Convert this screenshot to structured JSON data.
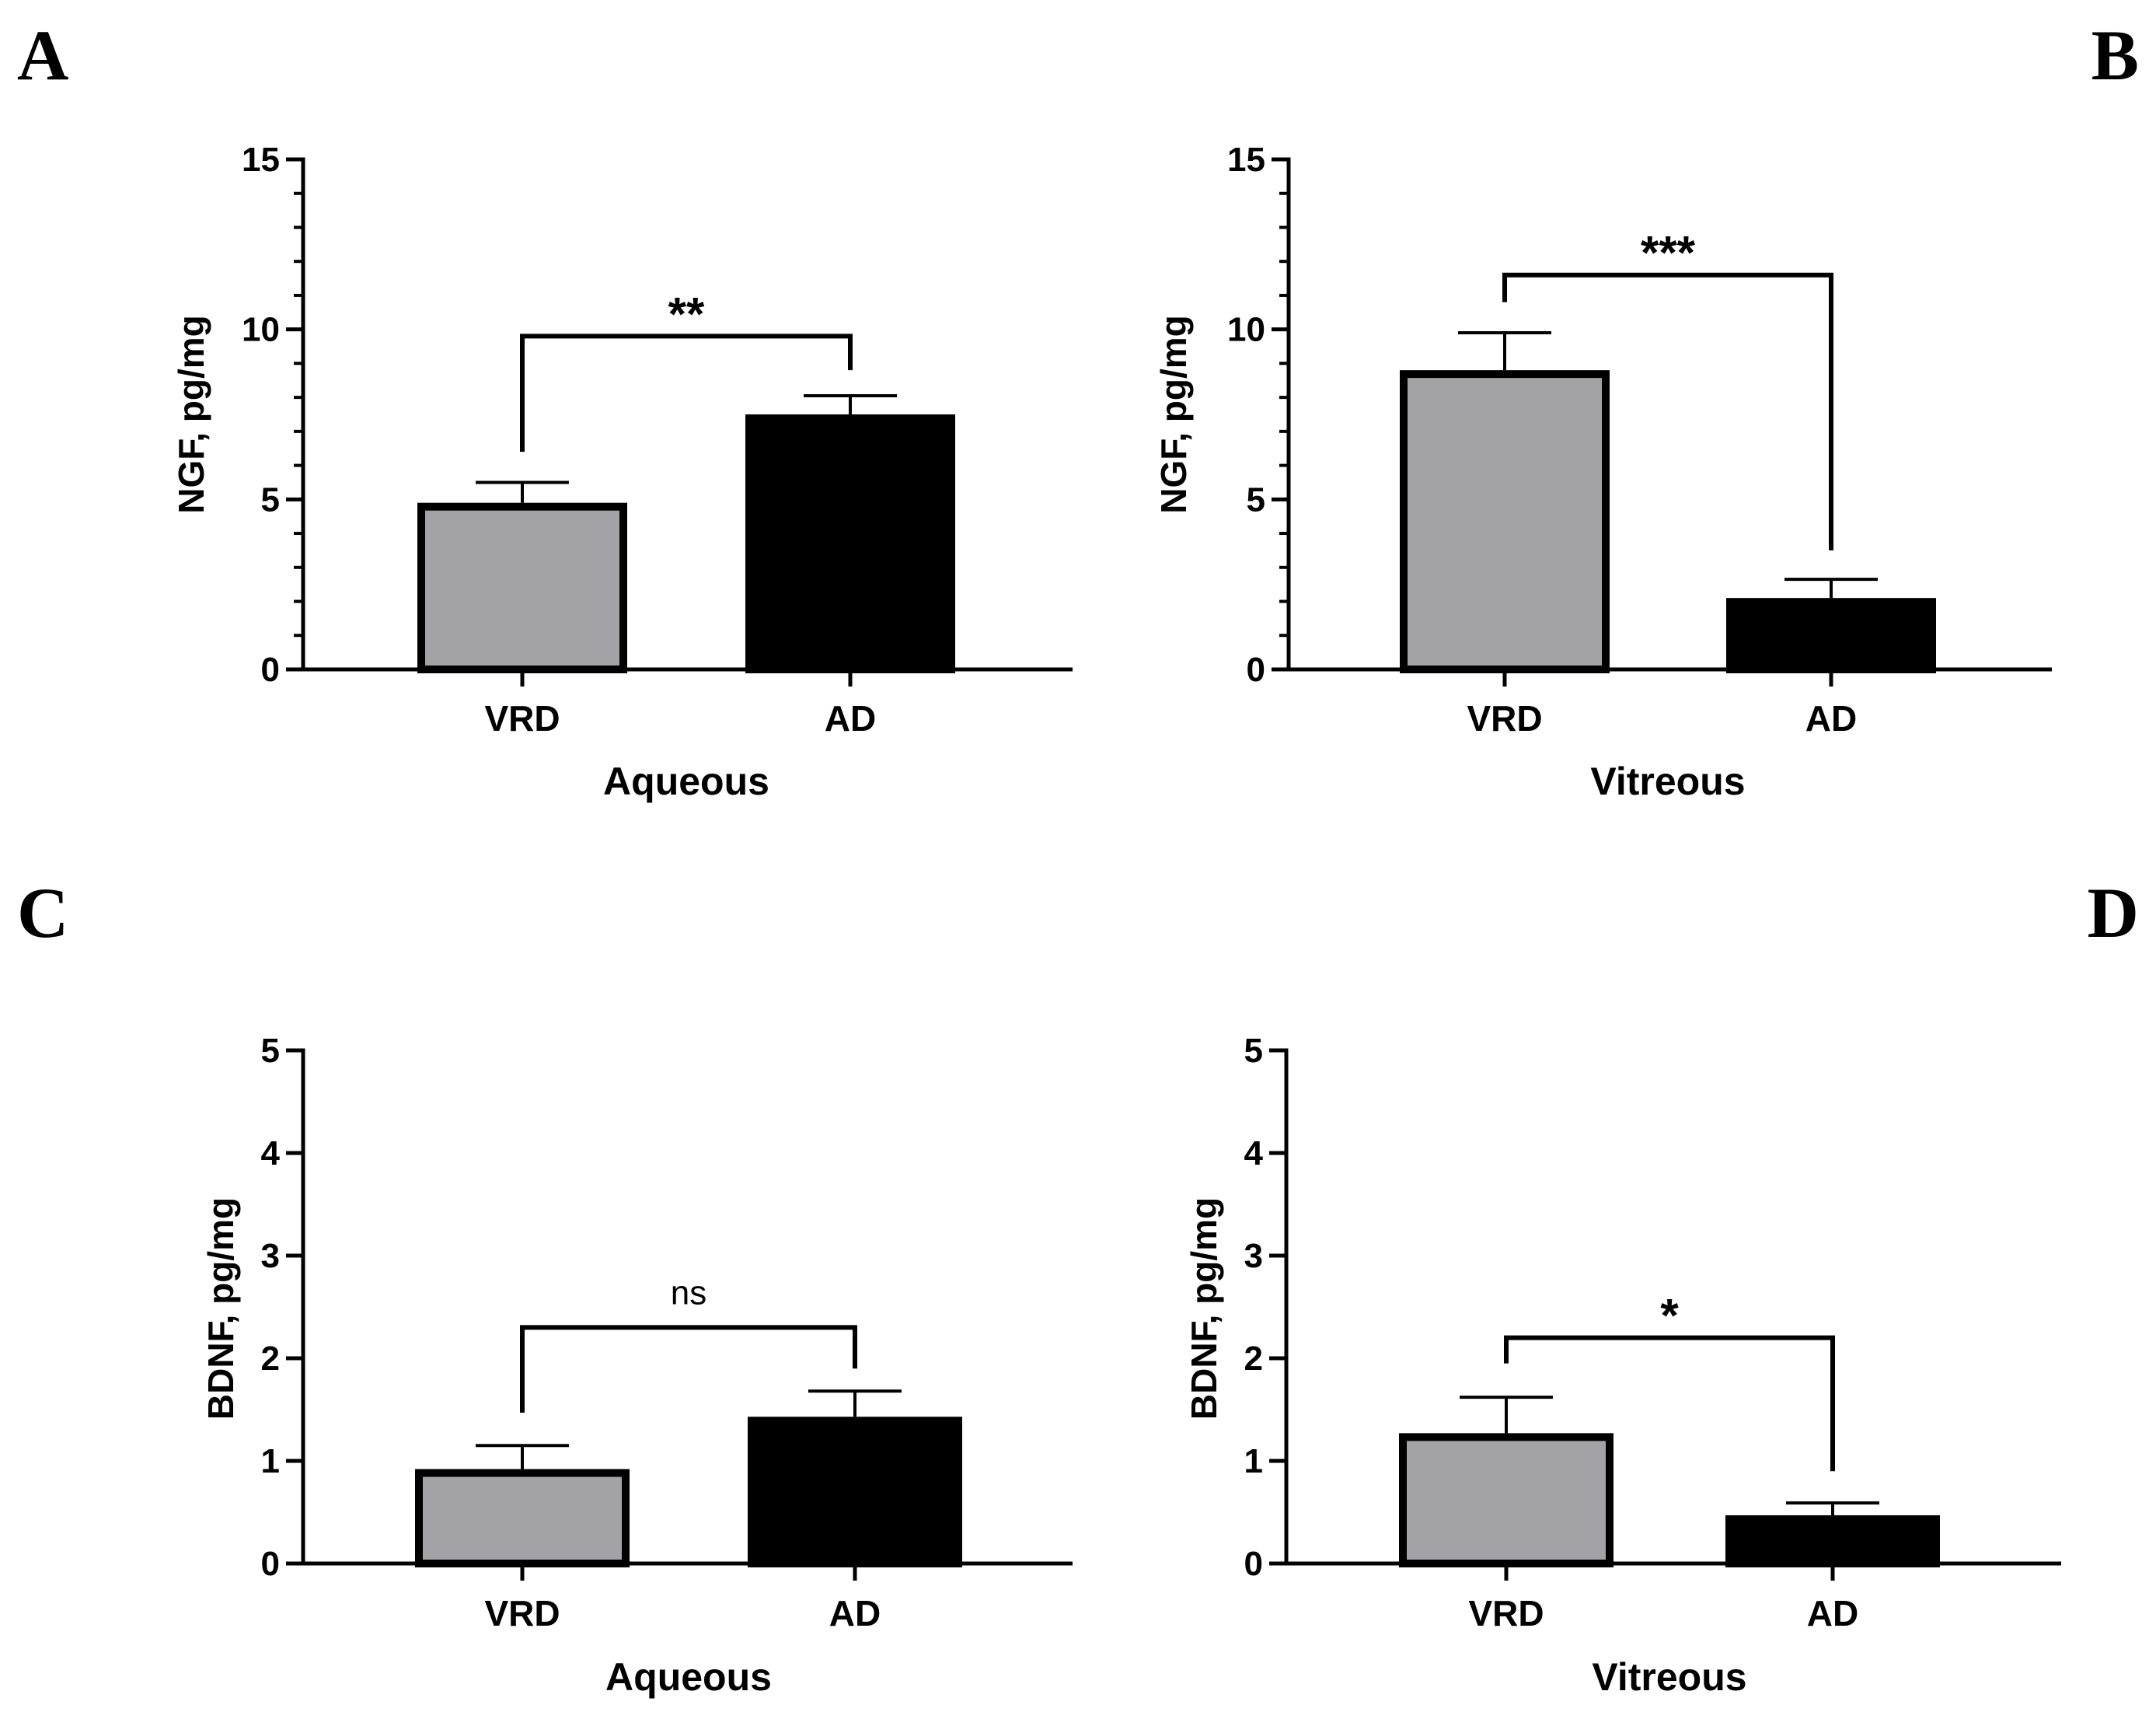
{
  "colors": {
    "vrd_fill": "#a3a2a7",
    "ad_fill": "#000000",
    "axis": "#000000",
    "background": "#ffffff"
  },
  "chart_data": [
    {
      "panel": "A",
      "type": "bar",
      "categories": [
        "VRD",
        "AD"
      ],
      "values": [
        4.9,
        7.5
      ],
      "errors": [
        0.6,
        0.55
      ],
      "xlabel": "Aqueous",
      "ylabel": "NGF, pg/mg",
      "ylim": [
        0,
        15
      ],
      "yticks": [
        0,
        5,
        10,
        15
      ],
      "yticks_minor": 1,
      "significance": {
        "label": "**",
        "bar_value": 9.8,
        "left_drop_value": 6.4,
        "right_drop_value": 8.8
      }
    },
    {
      "panel": "B",
      "type": "bar",
      "categories": [
        "VRD",
        "AD"
      ],
      "values": [
        8.8,
        2.1
      ],
      "errors": [
        1.1,
        0.55
      ],
      "xlabel": "Vitreous",
      "ylabel": "NGF, pg/mg",
      "ylim": [
        0,
        15
      ],
      "yticks": [
        0,
        5,
        10,
        15
      ],
      "yticks_minor": 1,
      "significance": {
        "label": "***",
        "bar_value": 11.6,
        "left_drop_value": 10.8,
        "right_drop_value": 3.5
      }
    },
    {
      "panel": "C",
      "type": "bar",
      "categories": [
        "VRD",
        "AD"
      ],
      "values": [
        0.92,
        1.43
      ],
      "errors": [
        0.23,
        0.25
      ],
      "xlabel": "Aqueous",
      "ylabel": "BDNF, pg/mg",
      "ylim": [
        0,
        5
      ],
      "yticks": [
        0,
        1,
        2,
        3,
        4,
        5
      ],
      "yticks_minor": 0,
      "significance": {
        "label": "ns",
        "bar_value": 2.3,
        "left_drop_value": 1.47,
        "right_drop_value": 1.9
      }
    },
    {
      "panel": "D",
      "type": "bar",
      "categories": [
        "VRD",
        "AD"
      ],
      "values": [
        1.27,
        0.47
      ],
      "errors": [
        0.35,
        0.12
      ],
      "xlabel": "Vitreous",
      "ylabel": "BDNF, pg/mg",
      "ylim": [
        0,
        5
      ],
      "yticks": [
        0,
        1,
        2,
        3,
        4,
        5
      ],
      "yticks_minor": 0,
      "significance": {
        "label": "*",
        "bar_value": 2.2,
        "left_drop_value": 1.95,
        "right_drop_value": 0.9
      }
    }
  ]
}
